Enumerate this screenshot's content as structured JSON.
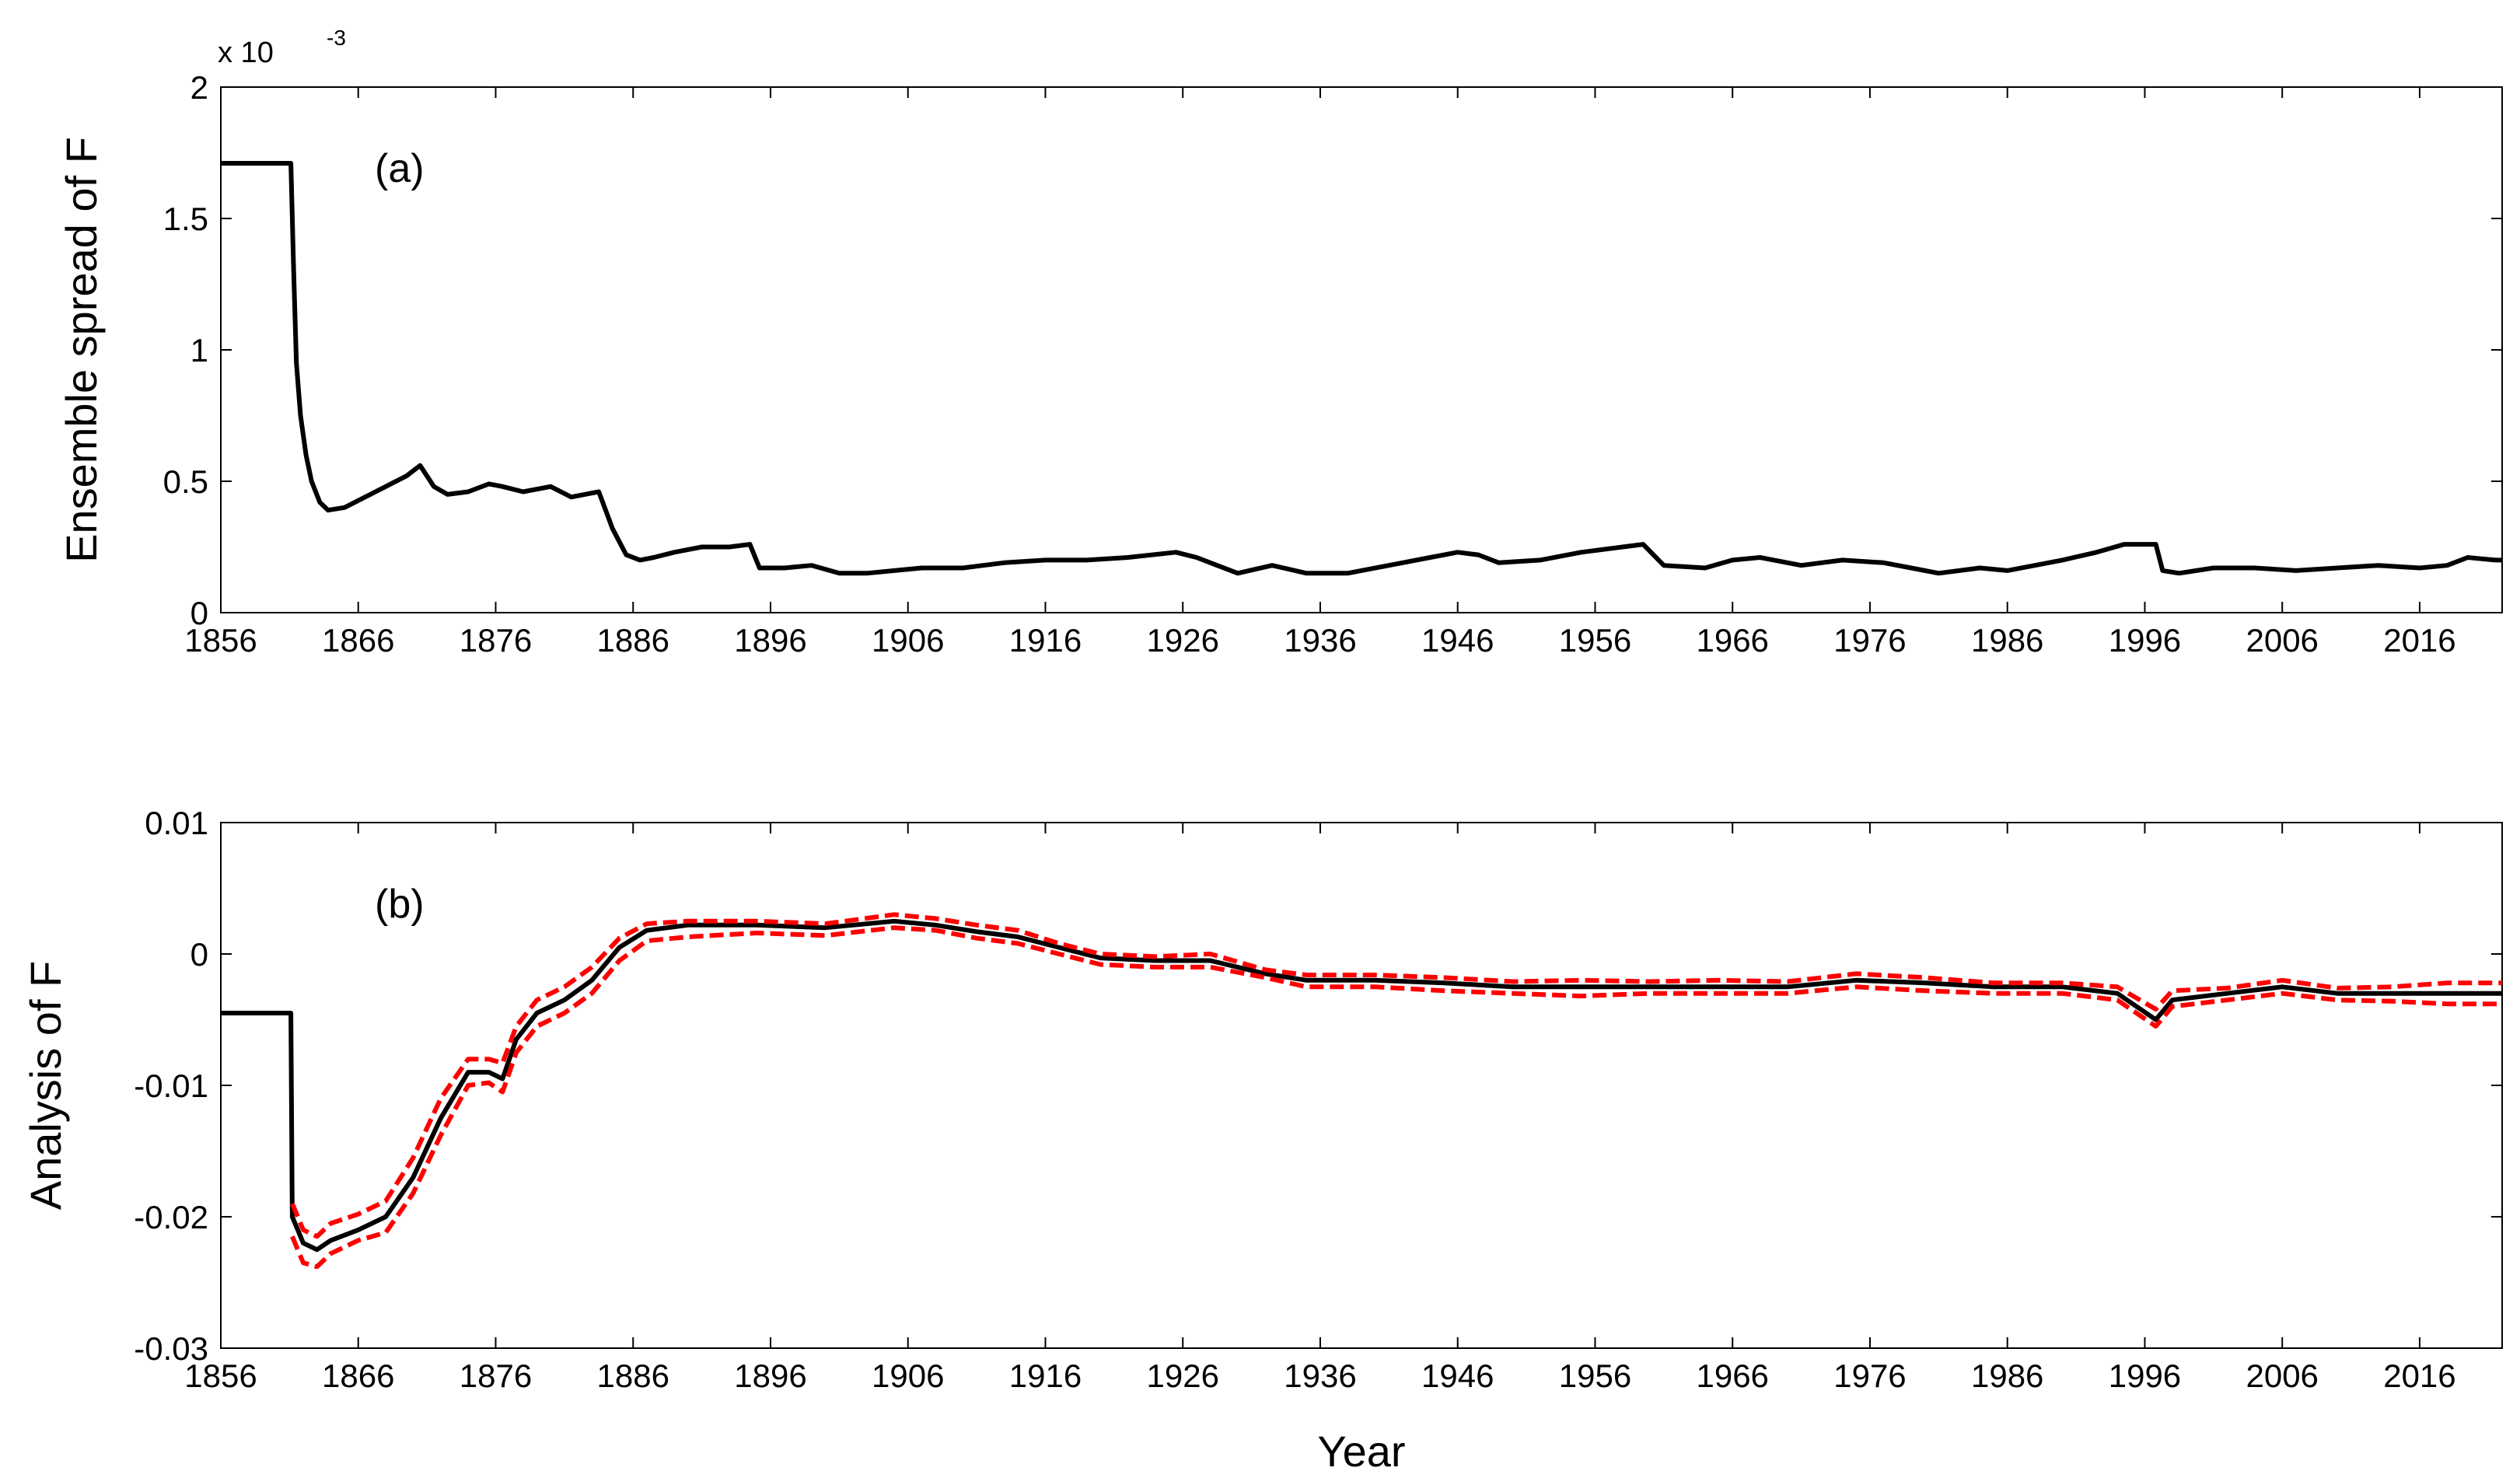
{
  "chart_data": [
    {
      "type": "line",
      "panel_label": "(a)",
      "title": "",
      "xlabel": "",
      "ylabel": "Ensemble spread of F",
      "y_exponent_label": "x 10",
      "y_exponent_power": "-3",
      "xlim": [
        1856,
        2022
      ],
      "ylim": [
        0,
        2
      ],
      "xticks": [
        1856,
        1866,
        1876,
        1886,
        1896,
        1906,
        1916,
        1926,
        1936,
        1946,
        1956,
        1966,
        1976,
        1986,
        1996,
        2006,
        2016
      ],
      "xtick_labels": [
        "1856",
        "1866",
        "1876",
        "1886",
        "1896",
        "1906",
        "1916",
        "1926",
        "1936",
        "1946",
        "1956",
        "1966",
        "1976",
        "1986",
        "1996",
        "2006",
        "2016"
      ],
      "yticks": [
        0,
        0.5,
        1,
        1.5,
        2
      ],
      "ytick_labels": [
        "0",
        "0.5",
        "1",
        "1.5",
        "2"
      ],
      "grid": false,
      "series": [
        {
          "name": "ensemble spread",
          "color": "#000000",
          "style": "solid",
          "x": [
            1856,
            1861.1,
            1861.3,
            1861.5,
            1861.8,
            1862.2,
            1862.6,
            1863.2,
            1863.8,
            1865,
            1866.5,
            1868,
            1869.5,
            1870.5,
            1871.5,
            1872.5,
            1874,
            1875.5,
            1876.5,
            1878,
            1880,
            1881.5,
            1883.5,
            1884.5,
            1885.5,
            1886.5,
            1887.5,
            1889,
            1891,
            1893,
            1894.5,
            1895.2,
            1897,
            1899,
            1901,
            1903,
            1905,
            1907,
            1910,
            1913,
            1916,
            1919,
            1922,
            1925.5,
            1927,
            1928.5,
            1930,
            1932.5,
            1935,
            1938,
            1941,
            1944,
            1946,
            1947.5,
            1949,
            1952,
            1955,
            1958,
            1959.5,
            1961,
            1964,
            1966,
            1968,
            1971,
            1974,
            1977,
            1979,
            1981,
            1984,
            1986,
            1988,
            1990,
            1992.5,
            1994.5,
            1996.8,
            1997.3,
            1998.5,
            2001,
            2004,
            2007,
            2010,
            2013,
            2016,
            2018,
            2019.5,
            2021.5,
            2022
          ],
          "y": [
            1.71,
            1.71,
            1.3,
            0.95,
            0.75,
            0.6,
            0.5,
            0.42,
            0.39,
            0.4,
            0.44,
            0.48,
            0.52,
            0.56,
            0.48,
            0.45,
            0.46,
            0.49,
            0.48,
            0.46,
            0.48,
            0.44,
            0.46,
            0.32,
            0.22,
            0.2,
            0.21,
            0.23,
            0.25,
            0.25,
            0.26,
            0.17,
            0.17,
            0.18,
            0.15,
            0.15,
            0.16,
            0.17,
            0.17,
            0.19,
            0.2,
            0.2,
            0.21,
            0.23,
            0.21,
            0.18,
            0.15,
            0.18,
            0.15,
            0.15,
            0.18,
            0.21,
            0.23,
            0.22,
            0.19,
            0.2,
            0.23,
            0.25,
            0.26,
            0.18,
            0.17,
            0.2,
            0.21,
            0.18,
            0.2,
            0.19,
            0.17,
            0.15,
            0.17,
            0.16,
            0.18,
            0.2,
            0.23,
            0.26,
            0.26,
            0.16,
            0.15,
            0.17,
            0.17,
            0.16,
            0.17,
            0.18,
            0.17,
            0.18,
            0.21,
            0.2,
            0.2
          ]
        }
      ]
    },
    {
      "type": "line",
      "panel_label": "(b)",
      "title": "",
      "xlabel": "Year",
      "ylabel": "Analysis of F",
      "xlim": [
        1856,
        2022
      ],
      "ylim": [
        -0.03,
        0.01
      ],
      "xticks": [
        1856,
        1866,
        1876,
        1886,
        1896,
        1906,
        1916,
        1926,
        1936,
        1946,
        1956,
        1966,
        1976,
        1986,
        1996,
        2006,
        2016
      ],
      "xtick_labels": [
        "1856",
        "1866",
        "1876",
        "1886",
        "1896",
        "1906",
        "1916",
        "1926",
        "1936",
        "1946",
        "1956",
        "1966",
        "1976",
        "1986",
        "1996",
        "2006",
        "2016"
      ],
      "yticks": [
        -0.03,
        -0.02,
        -0.01,
        0,
        0.01
      ],
      "ytick_labels": [
        "-0.03",
        "-0.02",
        "-0.01",
        "0",
        "0.01"
      ],
      "grid": false,
      "series": [
        {
          "name": "analysis mean",
          "color": "#000000",
          "style": "solid",
          "x": [
            1856,
            1861.1,
            1861.2,
            1862,
            1863,
            1864,
            1866,
            1868,
            1870,
            1872,
            1874,
            1875.5,
            1876.5,
            1877.5,
            1879,
            1881,
            1883,
            1885,
            1887,
            1890,
            1895,
            1900,
            1905,
            1908,
            1911,
            1914,
            1917,
            1920,
            1924,
            1928,
            1932,
            1935,
            1940,
            1945,
            1950,
            1955,
            1960,
            1965,
            1970,
            1975,
            1980,
            1985,
            1990,
            1994,
            1996.8,
            1998,
            2002,
            2006,
            2010,
            2014,
            2018,
            2022
          ],
          "y": [
            -0.0045,
            -0.0045,
            -0.02,
            -0.022,
            -0.0225,
            -0.0218,
            -0.021,
            -0.02,
            -0.017,
            -0.0125,
            -0.009,
            -0.009,
            -0.0095,
            -0.0065,
            -0.0045,
            -0.0035,
            -0.002,
            0.0005,
            0.0018,
            0.0022,
            0.0022,
            0.002,
            0.0025,
            0.0022,
            0.0017,
            0.0013,
            0.0005,
            -0.0003,
            -0.0005,
            -0.0005,
            -0.0015,
            -0.002,
            -0.002,
            -0.0022,
            -0.0025,
            -0.0025,
            -0.0025,
            -0.0025,
            -0.0025,
            -0.002,
            -0.0022,
            -0.0025,
            -0.0025,
            -0.003,
            -0.005,
            -0.0035,
            -0.003,
            -0.0025,
            -0.003,
            -0.003,
            -0.003,
            -0.003
          ]
        },
        {
          "name": "upper bound",
          "color": "#ff0000",
          "style": "dashed",
          "x": [
            1861.2,
            1862,
            1863,
            1864,
            1866,
            1868,
            1870,
            1872,
            1874,
            1875.5,
            1876.5,
            1877.5,
            1879,
            1881,
            1883,
            1885,
            1887,
            1890,
            1895,
            1900,
            1905,
            1908,
            1911,
            1914,
            1917,
            1920,
            1924,
            1928,
            1932,
            1935,
            1940,
            1945,
            1950,
            1955,
            1960,
            1965,
            1970,
            1975,
            1980,
            1985,
            1990,
            1994,
            1996.8,
            1998,
            2002,
            2006,
            2010,
            2014,
            2018,
            2022
          ],
          "y": [
            -0.019,
            -0.021,
            -0.0215,
            -0.0205,
            -0.0198,
            -0.0188,
            -0.0155,
            -0.011,
            -0.008,
            -0.008,
            -0.0083,
            -0.0055,
            -0.0035,
            -0.0025,
            -0.001,
            0.0012,
            0.0023,
            0.0025,
            0.0025,
            0.0023,
            0.003,
            0.0027,
            0.0022,
            0.0018,
            0.0008,
            0.0,
            -0.0002,
            0.0,
            -0.0012,
            -0.0016,
            -0.0016,
            -0.0018,
            -0.0021,
            -0.002,
            -0.0021,
            -0.002,
            -0.0021,
            -0.0015,
            -0.0018,
            -0.0022,
            -0.0022,
            -0.0025,
            -0.0042,
            -0.0028,
            -0.0026,
            -0.002,
            -0.0026,
            -0.0025,
            -0.0022,
            -0.0022
          ]
        },
        {
          "name": "lower bound",
          "color": "#ff0000",
          "style": "dashed",
          "x": [
            1861.2,
            1862,
            1863,
            1864,
            1866,
            1868,
            1870,
            1872,
            1874,
            1875.5,
            1876.5,
            1877.5,
            1879,
            1881,
            1883,
            1885,
            1887,
            1890,
            1895,
            1900,
            1905,
            1908,
            1911,
            1914,
            1917,
            1920,
            1924,
            1928,
            1932,
            1935,
            1940,
            1945,
            1950,
            1955,
            1960,
            1965,
            1970,
            1975,
            1980,
            1985,
            1990,
            1994,
            1996.8,
            1998,
            2002,
            2006,
            2010,
            2014,
            2018,
            2022
          ],
          "y": [
            -0.0215,
            -0.0235,
            -0.0238,
            -0.0228,
            -0.0218,
            -0.0212,
            -0.0182,
            -0.0138,
            -0.01,
            -0.0098,
            -0.0105,
            -0.0075,
            -0.0055,
            -0.0045,
            -0.003,
            -0.0005,
            0.001,
            0.0013,
            0.0016,
            0.0014,
            0.002,
            0.0018,
            0.0012,
            0.0008,
            0.0,
            -0.0008,
            -0.001,
            -0.001,
            -0.0018,
            -0.0025,
            -0.0025,
            -0.0028,
            -0.003,
            -0.0032,
            -0.003,
            -0.003,
            -0.003,
            -0.0025,
            -0.0028,
            -0.003,
            -0.003,
            -0.0035,
            -0.0055,
            -0.004,
            -0.0035,
            -0.003,
            -0.0035,
            -0.0036,
            -0.0038,
            -0.0038
          ]
        }
      ]
    }
  ]
}
